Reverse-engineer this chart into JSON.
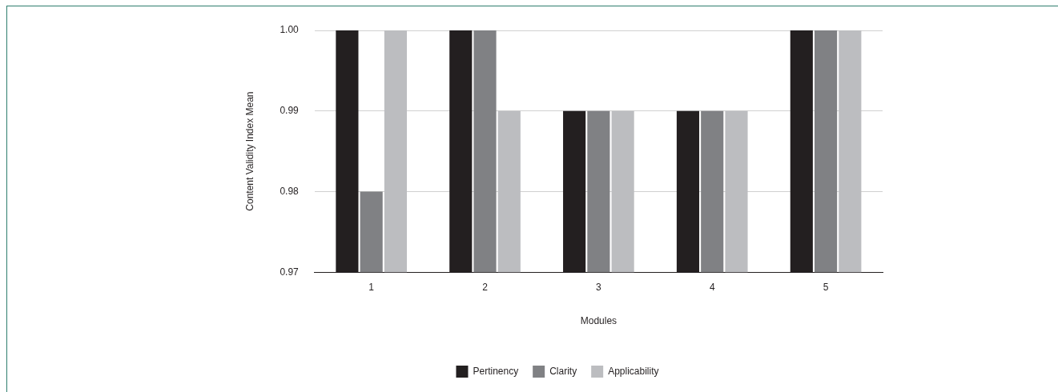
{
  "chart_data": {
    "type": "bar",
    "xlabel": "Modules",
    "ylabel": "Content Validity Index Mean",
    "categories": [
      "1",
      "2",
      "3",
      "4",
      "5"
    ],
    "series": [
      {
        "name": "Pertinency",
        "color": "#231f20",
        "values": [
          1.0,
          1.0,
          0.99,
          0.99,
          1.0
        ]
      },
      {
        "name": "Clarity",
        "color": "#808184",
        "values": [
          0.98,
          1.0,
          0.99,
          0.99,
          1.0
        ]
      },
      {
        "name": "Applicability",
        "color": "#bcbdc0",
        "values": [
          1.0,
          0.99,
          0.99,
          0.99,
          1.0
        ]
      }
    ],
    "ylim": [
      0.97,
      1.0
    ],
    "yticks": [
      {
        "value": 0.97,
        "label": "0.97"
      },
      {
        "value": 0.98,
        "label": "0.98"
      },
      {
        "value": 0.99,
        "label": "0.99"
      },
      {
        "value": 1.0,
        "label": "1.00"
      }
    ],
    "grid": "y",
    "legend": "bottom"
  }
}
